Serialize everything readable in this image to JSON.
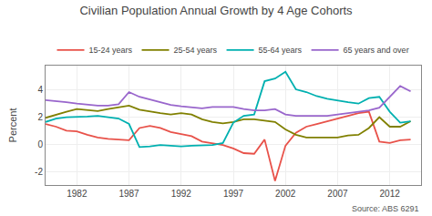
{
  "chart_data": {
    "type": "line",
    "title": "Civilian Population Annual Growth by 4 Age Cohorts",
    "ylabel": "Percent",
    "annotations": [
      "Source: ABS 6291"
    ],
    "x": [
      1979,
      1980,
      1981,
      1982,
      1983,
      1984,
      1985,
      1986,
      1987,
      1988,
      1989,
      1990,
      1991,
      1992,
      1993,
      1994,
      1995,
      1996,
      1997,
      1998,
      1999,
      2000,
      2001,
      2002,
      2003,
      2004,
      2005,
      2006,
      2007,
      2008,
      2009,
      2010,
      2011,
      2012,
      2013,
      2014
    ],
    "series": [
      {
        "name": "15-24 years",
        "color": "#e8524a",
        "values": [
          1.5,
          1.3,
          1.0,
          0.95,
          0.7,
          0.5,
          0.4,
          0.35,
          0.3,
          1.2,
          1.35,
          1.2,
          0.9,
          0.75,
          0.6,
          0.2,
          0.05,
          -0.05,
          -0.3,
          -0.65,
          -0.7,
          0.35,
          -2.7,
          -0.1,
          0.85,
          1.3,
          1.5,
          1.7,
          1.85,
          2.1,
          2.3,
          2.4,
          0.2,
          0.1,
          0.3,
          0.35
        ]
      },
      {
        "name": "25-54 years",
        "color": "#808000",
        "values": [
          1.95,
          2.2,
          2.4,
          2.6,
          2.55,
          2.45,
          2.6,
          2.75,
          2.85,
          2.55,
          2.4,
          2.3,
          2.2,
          2.3,
          2.2,
          1.85,
          1.65,
          1.55,
          1.65,
          1.85,
          1.85,
          1.75,
          1.65,
          1.1,
          0.7,
          0.5,
          0.5,
          0.5,
          0.5,
          0.65,
          0.7,
          1.2,
          2.0,
          1.3,
          1.3,
          1.7
        ]
      },
      {
        "name": "55-64 years",
        "color": "#00b0b0",
        "values": [
          1.65,
          1.9,
          2.0,
          2.05,
          2.05,
          2.1,
          2.0,
          1.9,
          1.5,
          -0.2,
          -0.15,
          -0.05,
          -0.1,
          -0.15,
          -0.1,
          -0.05,
          -0.05,
          0.1,
          1.6,
          2.1,
          2.2,
          4.65,
          4.85,
          5.35,
          4.05,
          3.85,
          3.55,
          3.35,
          3.2,
          3.1,
          3.0,
          3.4,
          3.5,
          2.4,
          1.6,
          1.7
        ]
      },
      {
        "name": "65 years and over",
        "color": "#9966cc",
        "values": [
          3.25,
          3.2,
          3.1,
          3.0,
          2.9,
          2.85,
          2.85,
          2.95,
          3.85,
          3.5,
          3.3,
          3.1,
          2.9,
          2.8,
          2.7,
          2.65,
          2.75,
          2.75,
          2.75,
          2.6,
          2.5,
          2.5,
          2.6,
          2.2,
          2.1,
          2.1,
          2.1,
          2.1,
          2.2,
          2.3,
          2.4,
          2.5,
          2.7,
          3.5,
          4.3,
          3.9
        ]
      }
    ],
    "xlim": [
      1979.0,
      2015.0
    ],
    "ylim": [
      -3.0,
      5.8
    ],
    "xticks": [
      1982,
      1987,
      1992,
      1997,
      2002,
      2007,
      2012
    ],
    "yticks": [
      -2,
      0,
      2,
      4
    ],
    "grid": true,
    "legend": "top"
  }
}
